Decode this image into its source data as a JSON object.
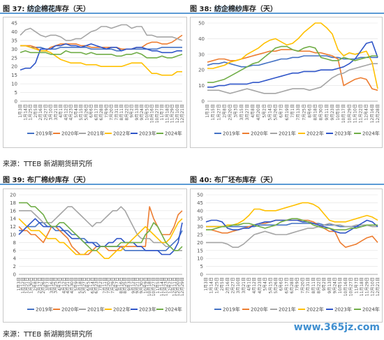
{
  "figures": [
    {
      "fig_label": "图 37:",
      "pre": "",
      "highlight": "纺企棉花",
      "post": "库存（天）"
    },
    {
      "fig_label": "图 38:",
      "pre": "",
      "highlight": "纺企棉纱",
      "post": "库存（天）"
    },
    {
      "fig_label": "图 39:",
      "pre": "布厂棉纱库存（天）",
      "highlight": "",
      "post": ""
    },
    {
      "fig_label": "图 40:",
      "pre": "布厂坯布库存（天）",
      "highlight": "",
      "post": ""
    }
  ],
  "sources": [
    "来源：TTEB  新湖期货研究所",
    "来源：TTEB  新湖期货研究所"
  ],
  "watermark": "www.365jz.com",
  "legend_colors": {
    "2019年": "#4472c4",
    "2020年": "#ed7d31",
    "2021年": "#a5a5a5",
    "2022年": "#ffc000",
    "2023年": "#2f55c8",
    "2024年": "#70ad47"
  },
  "chart_data": [
    {
      "type": "line",
      "ylim": [
        0,
        45
      ],
      "yticks": [
        0,
        5,
        10,
        15,
        20,
        25,
        30,
        35,
        40,
        45
      ],
      "x": [
        "1月3日",
        "1月14日",
        "1月25日",
        "2月5日",
        "2月16日",
        "2月27日",
        "3月10日",
        "3月21日",
        "4月1日",
        "4月12日",
        "4月23日",
        "5月4日",
        "5月15日",
        "5月26日",
        "6月6日",
        "6月17日",
        "6月28日",
        "7月9日",
        "7月20日",
        "7月31日",
        "8月11日",
        "8月22日",
        "9月2日",
        "9月13日",
        "9月24日",
        "10月5日",
        "10月16日",
        "10月27日",
        "11月7日",
        "11月18日",
        "11月29日",
        "12月10日",
        "12月21日"
      ],
      "series": [
        {
          "name": "2019年",
          "values": [
            32,
            32,
            31,
            31,
            31,
            30,
            30,
            30,
            31,
            31,
            31,
            31,
            31,
            31,
            30,
            30,
            30,
            30,
            30,
            29,
            29,
            30,
            30,
            30,
            30,
            30,
            30,
            30,
            31,
            31,
            31,
            31,
            31
          ]
        },
        {
          "name": "2020年",
          "values": [
            32,
            32,
            32,
            31,
            29,
            29,
            31,
            32,
            33,
            33,
            33,
            33,
            32,
            32,
            31,
            31,
            31,
            31,
            31,
            31,
            30,
            30,
            30,
            31,
            31,
            33,
            34,
            34,
            33,
            33,
            34,
            36,
            38
          ]
        },
        {
          "name": "2021年",
          "values": [
            38,
            41,
            42,
            40,
            38,
            37,
            38,
            38,
            37,
            35,
            35,
            36,
            36,
            38,
            40,
            41,
            43,
            43,
            42,
            43,
            44,
            44,
            42,
            43,
            43,
            38,
            38,
            37,
            37,
            37,
            37,
            36,
            35
          ]
        },
        {
          "name": "2022年",
          "values": [
            32,
            32,
            31,
            30,
            29,
            29,
            28,
            26,
            24,
            23,
            22,
            22,
            22,
            21,
            21,
            21,
            20,
            20,
            20,
            20,
            20,
            21,
            22,
            22,
            22,
            19,
            16,
            16,
            15,
            15,
            15,
            17,
            17
          ]
        },
        {
          "name": "2023年",
          "values": [
            18,
            19,
            19,
            22,
            30,
            30,
            30,
            32,
            32,
            33,
            32,
            32,
            31,
            32,
            33,
            32,
            31,
            30,
            31,
            31,
            29,
            30,
            30,
            31,
            31,
            30,
            29,
            29,
            28,
            28,
            28,
            29,
            29
          ]
        },
        {
          "name": "2024年",
          "values": [
            28,
            29,
            28,
            28,
            28,
            28,
            27,
            27,
            27,
            29,
            28,
            28,
            28,
            27,
            28,
            27,
            27,
            27,
            27,
            26,
            26,
            27,
            27,
            28,
            27,
            25,
            25,
            25,
            26,
            25,
            25,
            26,
            27
          ]
        }
      ]
    },
    {
      "type": "line",
      "ylim": [
        0,
        50
      ],
      "yticks": [
        0,
        10,
        20,
        30,
        40,
        50
      ],
      "x": [
        "1月3日",
        "1月15日",
        "1月27日",
        "2月8日",
        "2月20日",
        "3月3日",
        "3月15日",
        "3月27日",
        "4月8日",
        "4月20日",
        "5月2日",
        "5月14日",
        "5月26日",
        "6月7日",
        "6月19日",
        "7月1日",
        "7月13日",
        "7月25日",
        "8月6日",
        "8月18日",
        "8月30日",
        "9月11日",
        "9月23日",
        "10月5日",
        "10月17日",
        "10月29日",
        "11月10日",
        "11月22日",
        "12月4日",
        "12月16日",
        "12月28日"
      ],
      "series": [
        {
          "name": "2019年",
          "values": [
            23,
            24,
            24,
            25,
            24,
            23,
            22,
            22,
            23,
            23,
            24,
            25,
            26,
            27,
            27,
            28,
            28,
            29,
            29,
            29,
            29,
            29,
            28,
            28,
            27,
            27,
            27,
            28,
            28,
            28,
            28
          ]
        },
        {
          "name": "2020年",
          "values": [
            25,
            26,
            27,
            27,
            26,
            26,
            27,
            28,
            29,
            30,
            31,
            32,
            32,
            33,
            33,
            33,
            32,
            32,
            32,
            31,
            31,
            30,
            29,
            27,
            10,
            12,
            14,
            15,
            14,
            8,
            7
          ]
        },
        {
          "name": "2021年",
          "values": [
            7,
            7,
            7,
            6,
            5,
            6,
            7,
            8,
            7,
            6,
            5,
            5,
            5,
            6,
            7,
            8,
            8,
            8,
            7,
            8,
            9,
            12,
            15,
            17,
            18,
            20,
            21,
            22,
            23,
            24,
            24
          ]
        },
        {
          "name": "2022年",
          "values": [
            21,
            21,
            22,
            23,
            25,
            26,
            27,
            30,
            32,
            34,
            37,
            39,
            40,
            38,
            36,
            37,
            40,
            44,
            47,
            50,
            50,
            47,
            43,
            33,
            29,
            31,
            30,
            31,
            32,
            25,
            8
          ]
        },
        {
          "name": "2023年",
          "values": [
            9,
            9,
            10,
            10,
            11,
            11,
            11,
            11,
            12,
            12,
            13,
            14,
            15,
            16,
            17,
            18,
            18,
            19,
            19,
            19,
            20,
            20,
            20,
            21,
            22,
            24,
            27,
            32,
            37,
            38,
            28
          ]
        },
        {
          "name": "2024年",
          "values": [
            12,
            12,
            13,
            14,
            16,
            18,
            20,
            22,
            24,
            25,
            28,
            31,
            34,
            35,
            35,
            33,
            32,
            34,
            35,
            34,
            28,
            27,
            26,
            26,
            28,
            27,
            26,
            27,
            28,
            29,
            29
          ]
        }
      ]
    },
    {
      "type": "line",
      "ylim": [
        0,
        20
      ],
      "yticks": [
        0,
        2,
        4,
        6,
        8,
        10,
        12,
        14,
        16,
        18,
        20
      ],
      "x": [
        "1月3日",
        "1月12日",
        "1月21日",
        "1月30日",
        "2月8日",
        "2月17日",
        "2月26日",
        "3月7日",
        "3月16日",
        "3月25日",
        "4月3日",
        "4月12日",
        "4月21日",
        "4月30日",
        "5月9日",
        "5月18日",
        "5月27日",
        "6月5日",
        "6月14日",
        "6月23日",
        "7月2日",
        "7月11日",
        "7月20日",
        "7月29日",
        "8月7日",
        "8月16日",
        "8月25日",
        "9月3日",
        "9月12日",
        "9月21日",
        "9月30日",
        "10月9日",
        "10月18日",
        "10月27日",
        "11月5日",
        "11月14日",
        "11月23日",
        "12月2日",
        "12月11日",
        "12月20日",
        "12月29日"
      ],
      "series": [
        {
          "name": "2019年",
          "values": [
            11,
            11,
            12,
            12,
            12,
            13,
            13,
            12,
            12,
            11,
            11,
            11,
            11,
            10,
            10,
            9,
            9,
            8,
            8,
            8,
            7,
            7,
            7,
            7,
            7,
            7,
            6,
            6,
            6,
            6,
            6,
            6,
            6,
            6,
            6,
            6,
            6,
            7,
            8,
            9,
            11
          ]
        },
        {
          "name": "2020年",
          "values": [
            12,
            11,
            11,
            10,
            10,
            9,
            8,
            10,
            12,
            12,
            11,
            10,
            9,
            7,
            6,
            5,
            5,
            5,
            6,
            7,
            7,
            7,
            6,
            6,
            6,
            7,
            7,
            7,
            7,
            7,
            7,
            7,
            17,
            14,
            12,
            10,
            10,
            10,
            12,
            15,
            16
          ]
        },
        {
          "name": "2021年",
          "values": [
            16,
            16,
            16,
            16,
            15,
            14,
            13,
            13,
            13,
            14,
            15,
            16,
            17,
            17,
            16,
            15,
            14,
            13,
            12,
            13,
            13,
            14,
            15,
            16,
            16,
            17,
            16,
            14,
            12,
            10,
            9,
            9,
            9,
            8,
            8,
            8,
            7,
            7,
            6,
            6,
            6
          ]
        },
        {
          "name": "2022年",
          "values": [
            14,
            13,
            12,
            11,
            11,
            11,
            10,
            9,
            9,
            9,
            8,
            8,
            7,
            6,
            5,
            5,
            5,
            6,
            6,
            6,
            5,
            4,
            4,
            5,
            6,
            6,
            7,
            8,
            9,
            10,
            11,
            12,
            11,
            10,
            9,
            8,
            8,
            9,
            11,
            13,
            14
          ]
        },
        {
          "name": "2023年",
          "values": [
            10,
            11,
            12,
            13,
            14,
            13,
            12,
            12,
            12,
            12,
            12,
            11,
            10,
            9,
            9,
            9,
            8,
            8,
            8,
            7,
            7,
            7,
            8,
            8,
            9,
            9,
            8,
            8,
            8,
            7,
            7,
            6,
            6,
            6,
            6,
            5,
            5,
            5,
            6,
            8,
            13
          ]
        },
        {
          "name": "2024年",
          "values": [
            18,
            18,
            18,
            17,
            17,
            16,
            15,
            13,
            12,
            12,
            13,
            13,
            12,
            11,
            10,
            9,
            8,
            7,
            6,
            6,
            7,
            7,
            7,
            7,
            7,
            8,
            8,
            8,
            8,
            8,
            8,
            10,
            11,
            13,
            12,
            10,
            8,
            7,
            6,
            6,
            7
          ]
        }
      ]
    },
    {
      "type": "line",
      "ylim": [
        0,
        50
      ],
      "yticks": [
        0,
        5,
        10,
        15,
        20,
        25,
        30,
        35,
        40,
        45,
        50
      ],
      "x": [
        "1月3日",
        "1月14日",
        "1月25日",
        "2月5日",
        "2月16日",
        "2月27日",
        "3月10日",
        "3月21日",
        "4月1日",
        "4月12日",
        "4月23日",
        "5月4日",
        "5月15日",
        "5月26日",
        "6月6日",
        "6月17日",
        "6月28日",
        "7月9日",
        "7月20日",
        "7月31日",
        "8月11日",
        "8月22日",
        "9月2日",
        "9月13日",
        "9月24日",
        "10月5日",
        "10月16日",
        "10月27日",
        "11月7日",
        "11月18日",
        "11月29日",
        "12月10日",
        "12月21日"
      ],
      "series": [
        {
          "name": "2019年",
          "values": [
            30,
            30,
            30,
            30,
            30,
            30,
            30,
            30,
            30,
            30,
            31,
            31,
            31,
            31,
            31,
            31,
            32,
            32,
            32,
            32,
            32,
            32,
            31,
            31,
            31,
            30,
            30,
            30,
            30,
            30,
            31,
            31,
            31
          ]
        },
        {
          "name": "2020年",
          "values": [
            28,
            28,
            27,
            26,
            26,
            27,
            28,
            29,
            30,
            31,
            32,
            32,
            33,
            34,
            34,
            34,
            34,
            34,
            34,
            34,
            33,
            31,
            29,
            27,
            27,
            20,
            17,
            18,
            19,
            21,
            23,
            24,
            20
          ]
        },
        {
          "name": "2021年",
          "values": [
            20,
            20,
            20,
            20,
            19,
            17,
            17,
            19,
            22,
            25,
            26,
            27,
            26,
            25,
            25,
            25,
            26,
            27,
            28,
            29,
            29,
            30,
            31,
            32,
            31,
            31,
            30,
            30,
            31,
            31,
            31,
            30,
            30
          ]
        },
        {
          "name": "2022年",
          "values": [
            30,
            30,
            30,
            30,
            31,
            31,
            32,
            34,
            37,
            41,
            41,
            40,
            40,
            40,
            41,
            42,
            43,
            44,
            45,
            45,
            44,
            42,
            38,
            34,
            33,
            33,
            33,
            34,
            35,
            36,
            37,
            36,
            34
          ]
        },
        {
          "name": "2023年",
          "values": [
            33,
            34,
            34,
            33,
            29,
            28,
            28,
            29,
            29,
            31,
            32,
            33,
            33,
            34,
            34,
            34,
            34,
            34,
            33,
            33,
            32,
            31,
            30,
            29,
            27,
            26,
            26,
            28,
            30,
            32,
            34,
            33,
            30
          ]
        },
        {
          "name": "2024年",
          "values": [
            28,
            28,
            29,
            30,
            30,
            31,
            31,
            32,
            32,
            31,
            30,
            29,
            30,
            31,
            33,
            34,
            35,
            35,
            34,
            33,
            31,
            30,
            29,
            29,
            28,
            28,
            28,
            29,
            29,
            30,
            31,
            31,
            31
          ]
        }
      ]
    }
  ]
}
